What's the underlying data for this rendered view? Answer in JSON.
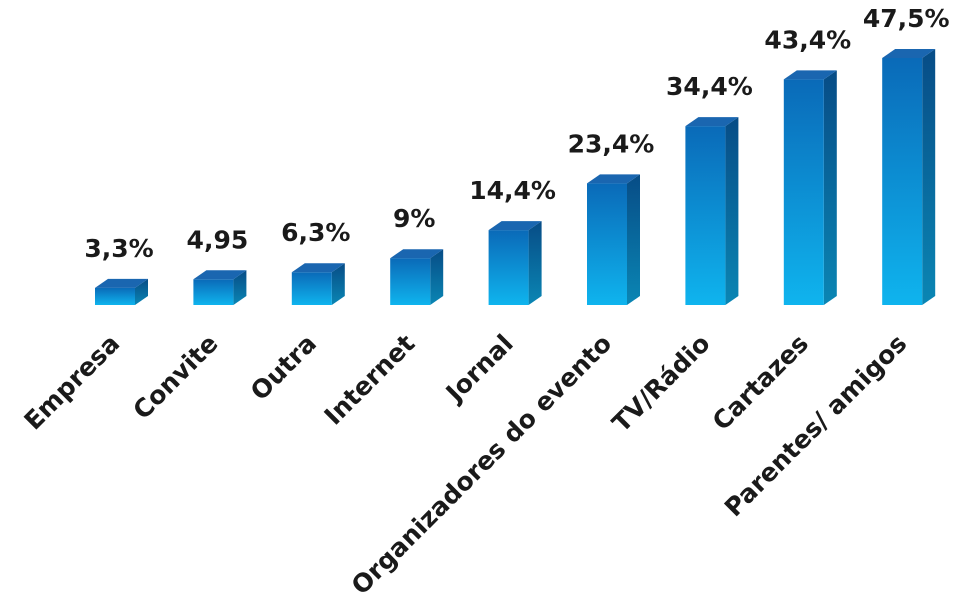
{
  "chart_data": {
    "type": "bar",
    "style": "3d-column",
    "categories": [
      "Empresa",
      "Convite",
      "Outra",
      "Internet",
      "Jornal",
      "Organizadores do evento",
      "TV/Rádio",
      "Cartazes",
      "Parentes/ amigos"
    ],
    "values": [
      3.3,
      4.95,
      6.3,
      9,
      14.4,
      23.4,
      34.4,
      43.4,
      47.5
    ],
    "data_labels": [
      "3,3%",
      "4,95",
      "6,3%",
      "9%",
      "14,4%",
      "23,4%",
      "34,4%",
      "43,4%",
      "47,5%"
    ],
    "title": "",
    "xlabel": "",
    "ylabel": "",
    "ylim": [
      0,
      50
    ],
    "grid": false,
    "legend": "none",
    "colors": {
      "bar_top": "#0a6ab8",
      "bar_bottom": "#0fb4ee",
      "side_top": "#074c86",
      "side_bottom": "#0a86b4",
      "cap": "#1a66b0",
      "text": "#1a1a1a"
    }
  }
}
